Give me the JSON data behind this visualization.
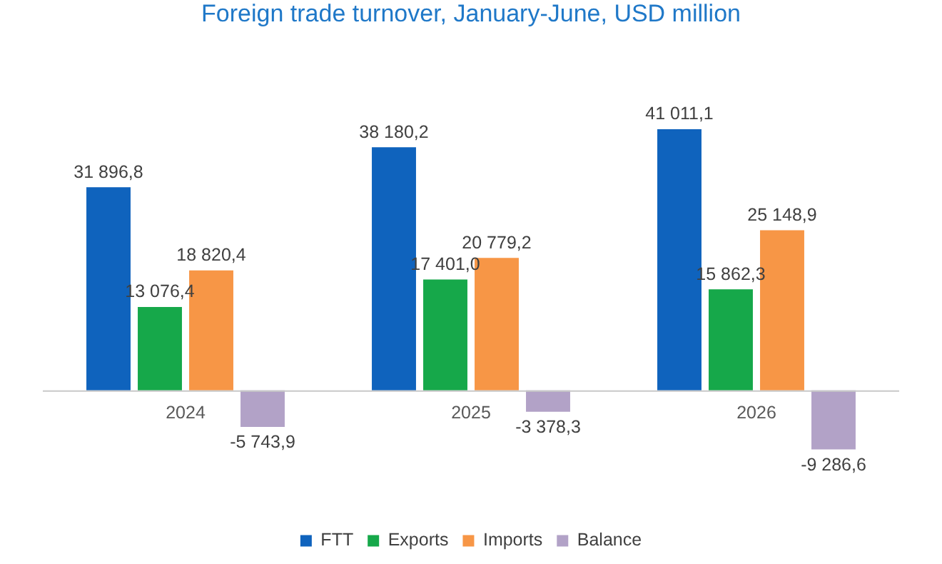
{
  "chart_data": {
    "type": "bar",
    "title": "Foreign trade turnover, January-June, USD million",
    "categories": [
      "2024",
      "2025",
      "2026"
    ],
    "series": [
      {
        "name": "FTT",
        "color": "#0f63bd",
        "values": [
          31896.8,
          38180.2,
          41011.1
        ],
        "value_labels": [
          "31 896,8",
          "38 180,2",
          "41 011,1"
        ]
      },
      {
        "name": "Exports",
        "color": "#16a84a",
        "values": [
          13076.4,
          17401.0,
          15862.3
        ],
        "value_labels": [
          "13 076,4",
          "17 401,0",
          "15 862,3"
        ]
      },
      {
        "name": "Imports",
        "color": "#f79646",
        "values": [
          18820.4,
          20779.2,
          25148.9
        ],
        "value_labels": [
          "18 820,4",
          "20 779,2",
          "25 148,9"
        ]
      },
      {
        "name": "Balance",
        "color": "#b2a2c7",
        "values": [
          -5743.9,
          -3378.3,
          -9286.6
        ],
        "value_labels": [
          "-5 743,9",
          "-3 378,3",
          "-9 286,6"
        ]
      }
    ],
    "legend": "bottom",
    "grid": false
  }
}
